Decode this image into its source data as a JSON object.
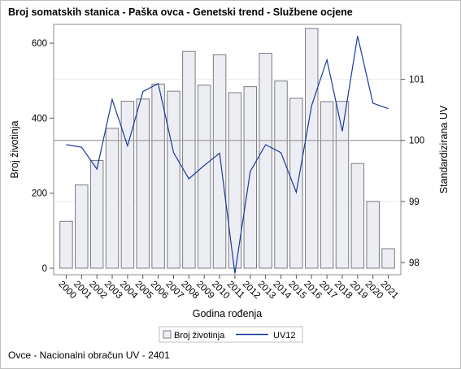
{
  "chart_data": {
    "type": "bar",
    "title": "Broj somatskih stanica - Paška ovca - Genetski trend - Službene ocjene",
    "xlabel": "Godina rođenja",
    "ylabel": "Broj životinja",
    "y2label": "Standardizirana UV",
    "ylim": [
      0,
      650
    ],
    "y2lim": [
      97.8,
      101.9
    ],
    "yticks": [
      0,
      200,
      400,
      600
    ],
    "y2ticks": [
      98,
      99,
      100,
      101
    ],
    "y2_reference_line": 100,
    "footnote": "Ovce - Nacionalni obračun UV - 2401",
    "categories": [
      "2000",
      "2001",
      "2002",
      "2003",
      "2004",
      "2005",
      "2006",
      "2007",
      "2008",
      "2009",
      "2010",
      "2011",
      "2012",
      "2013",
      "2014",
      "2015",
      "2016",
      "2017",
      "2018",
      "2019",
      "2020",
      "2021"
    ],
    "series": [
      {
        "name": "Broj životinja",
        "type": "bar",
        "axis": "left",
        "values": [
          125,
          222,
          287,
          373,
          445,
          451,
          491,
          472,
          578,
          488,
          569,
          468,
          484,
          573,
          499,
          453,
          639,
          444,
          445,
          279,
          178,
          52
        ]
      },
      {
        "name": "UV12",
        "type": "line",
        "axis": "right",
        "values": [
          99.93,
          99.89,
          99.53,
          100.67,
          99.91,
          100.8,
          100.93,
          99.8,
          99.37,
          99.59,
          99.79,
          97.82,
          99.49,
          99.93,
          99.8,
          99.15,
          100.57,
          101.32,
          100.15,
          101.71,
          100.61,
          100.52
        ]
      }
    ],
    "legend": {
      "position": "bottom",
      "entries": [
        "Broj životinja",
        "UV12"
      ]
    },
    "colors": {
      "bar_fill": "#eceef4",
      "bar_stroke": "#7a7c80",
      "line": "#1c3a9c",
      "refline": "#a0a0a0",
      "grid": "#ececec"
    }
  }
}
